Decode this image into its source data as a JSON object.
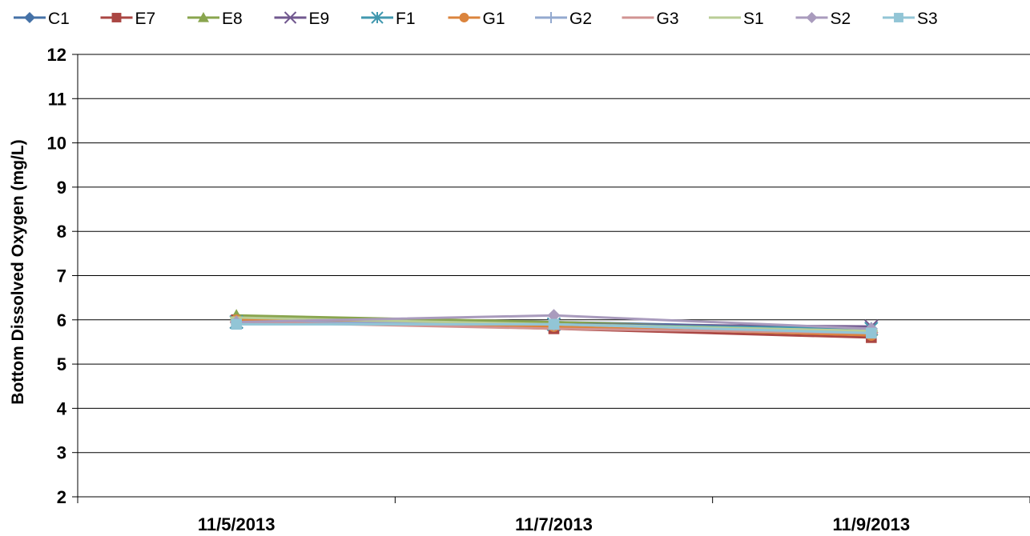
{
  "chart_data": {
    "type": "line",
    "title": "",
    "xlabel": "",
    "ylabel": "Bottom Dissolved Oxygen (mg/L)",
    "ylim": [
      2,
      12
    ],
    "yticks": [
      2,
      3,
      4,
      5,
      6,
      7,
      8,
      9,
      10,
      11,
      12
    ],
    "categories": [
      "11/5/2013",
      "11/7/2013",
      "11/9/2013"
    ],
    "grid": "horizontal",
    "legend_position": "top",
    "series": [
      {
        "name": "C1",
        "values": [
          6.05,
          5.95,
          5.8
        ],
        "color": "#4572A7",
        "marker": "diamond"
      },
      {
        "name": "E7",
        "values": [
          6.0,
          5.8,
          5.6
        ],
        "color": "#AA4643",
        "marker": "square"
      },
      {
        "name": "E8",
        "values": [
          6.1,
          5.95,
          5.75
        ],
        "color": "#89A54E",
        "marker": "triangle"
      },
      {
        "name": "E9",
        "values": [
          5.95,
          5.9,
          5.85
        ],
        "color": "#71588F",
        "marker": "x"
      },
      {
        "name": "F1",
        "values": [
          5.95,
          5.9,
          5.8
        ],
        "color": "#4198AF",
        "marker": "asterisk"
      },
      {
        "name": "G1",
        "values": [
          6.0,
          5.85,
          5.65
        ],
        "color": "#DB843D",
        "marker": "circle"
      },
      {
        "name": "G2",
        "values": [
          5.95,
          5.9,
          5.75
        ],
        "color": "#93A9CF",
        "marker": "plus"
      },
      {
        "name": "G3",
        "values": [
          5.95,
          5.8,
          5.7
        ],
        "color": "#D19392",
        "marker": "dash"
      },
      {
        "name": "S1",
        "values": [
          6.05,
          5.9,
          5.75
        ],
        "color": "#B9CD96",
        "marker": "dash"
      },
      {
        "name": "S2",
        "values": [
          5.95,
          6.1,
          5.8
        ],
        "color": "#A99BBD",
        "marker": "diamond"
      },
      {
        "name": "S3",
        "values": [
          5.9,
          5.9,
          5.7
        ],
        "color": "#92C5D6",
        "marker": "square"
      }
    ]
  }
}
